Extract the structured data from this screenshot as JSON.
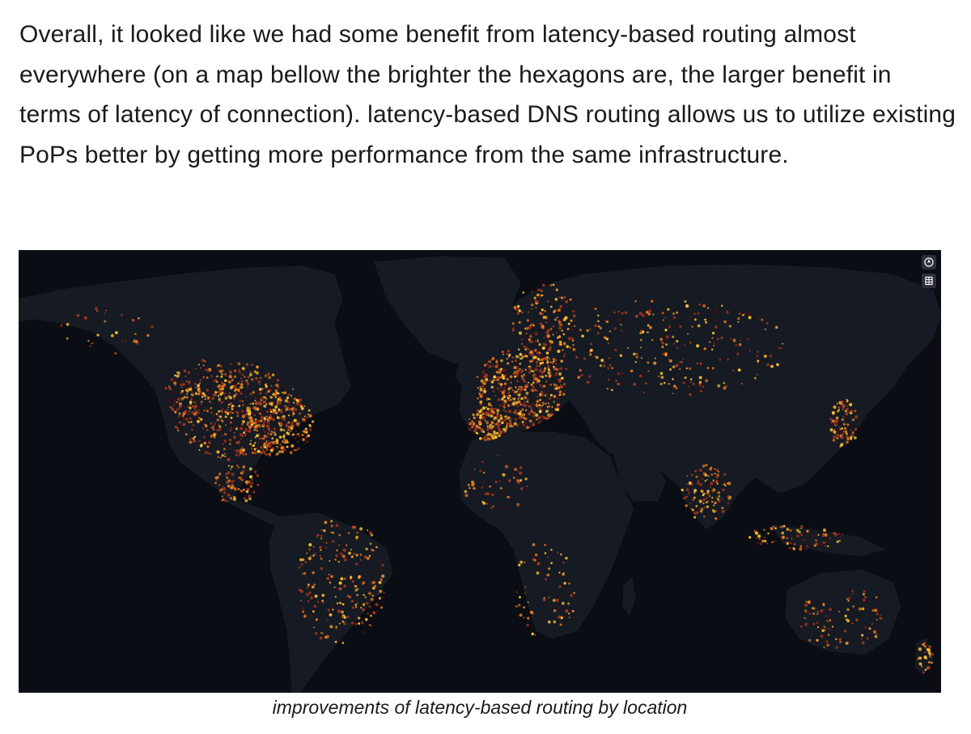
{
  "article": {
    "paragraph": "Overall, it looked like we had some benefit from latency-based routing almost everywhere (on a map bellow the brighter the hexagons are, the larger benefit in terms of latency of connection). latency-based DNS routing allows us to utilize existing PoPs better by getting more performance from the same infrastructure."
  },
  "map": {
    "caption": "improvements of latency-based routing by location",
    "controls": [
      {
        "icon": "compass-icon"
      },
      {
        "icon": "data-table-icon"
      }
    ],
    "colors": {
      "background": "#0b0d14",
      "land": "#161a23",
      "hex_low": "#4a1018",
      "hex_mid": "#a8361c",
      "hex_high": "#e87a1e",
      "hex_peak": "#ffc433"
    }
  }
}
